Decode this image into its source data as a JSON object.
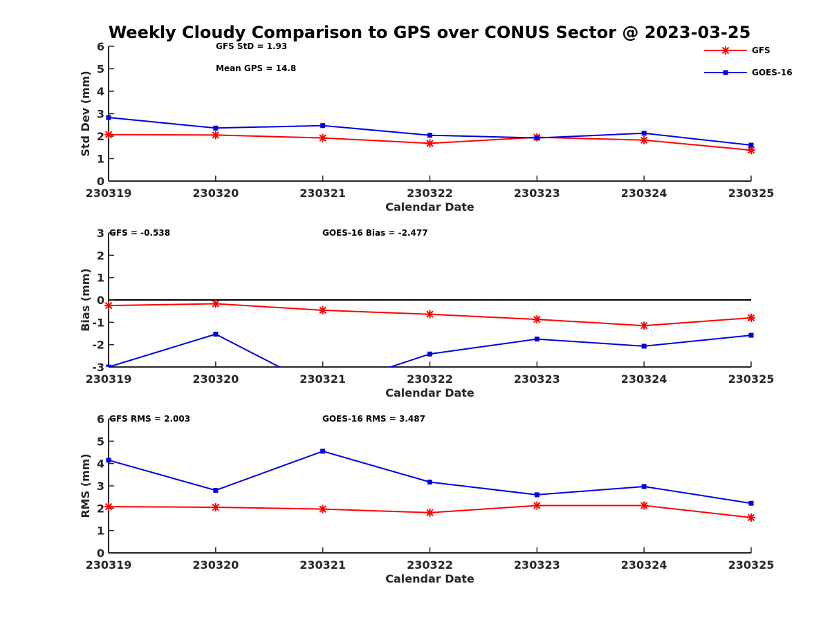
{
  "colors": {
    "GFS": "#ff0000",
    "GOES-16": "#0000e0",
    "axis": "#262626",
    "zero_line": "#000000"
  },
  "chart_data": {
    "title": "Weekly Cloudy Comparison to GPS over CONUS Sector @ 2023-03-25",
    "legend": {
      "placement": "top-right",
      "entries": [
        "GFS",
        "GOES-16"
      ]
    },
    "panels": [
      {
        "type": "line",
        "categories": [
          "230319",
          "230320",
          "230321",
          "230322",
          "230323",
          "230324",
          "230325"
        ],
        "xlabel": "Calendar Date",
        "ylabel": "Std Dev (mm)",
        "ylim": [
          0,
          6
        ],
        "yticks": [
          "0",
          "1",
          "2",
          "3",
          "4",
          "5",
          "6"
        ],
        "annotations": [
          "GFS StD = 1.93",
          "Mean GPS = 14.8"
        ],
        "series": [
          {
            "name": "GFS",
            "values": [
              2.07,
              2.05,
              1.92,
              1.68,
              1.95,
              1.82,
              1.38
            ]
          },
          {
            "name": "GOES-16",
            "values": [
              2.83,
              2.36,
              2.47,
              2.04,
              1.92,
              2.13,
              1.6
            ]
          }
        ]
      },
      {
        "type": "line",
        "categories": [
          "230319",
          "230320",
          "230321",
          "230322",
          "230323",
          "230324",
          "230325"
        ],
        "xlabel": "Calendar Date",
        "ylabel": "Bias (mm)",
        "ylim": [
          -3,
          3
        ],
        "yticks": [
          "-3",
          "-2",
          "-1",
          "0",
          "1",
          "2",
          "3"
        ],
        "zero_line": true,
        "annotations": [
          "GFS = -0.538",
          "GOES-16 Bias  = -2.477"
        ],
        "series": [
          {
            "name": "GFS",
            "values": [
              -0.25,
              -0.17,
              -0.46,
              -0.64,
              -0.87,
              -1.15,
              -0.8
            ]
          },
          {
            "name": "GOES-16",
            "values": [
              -3.0,
              -1.53,
              -4.0,
              -2.42,
              -1.75,
              -2.07,
              -1.58
            ]
          }
        ]
      },
      {
        "type": "line",
        "categories": [
          "230319",
          "230320",
          "230321",
          "230322",
          "230323",
          "230324",
          "230325"
        ],
        "xlabel": "Calendar Date",
        "ylabel": "RMS (mm)",
        "ylim": [
          0,
          6
        ],
        "yticks": [
          "0",
          "1",
          "2",
          "3",
          "4",
          "5",
          "6"
        ],
        "annotations": [
          "GFS RMS = 2.003",
          "GOES-16 RMS = 3.487"
        ],
        "series": [
          {
            "name": "GFS",
            "values": [
              2.07,
              2.04,
              1.96,
              1.8,
              2.12,
              2.12,
              1.58
            ]
          },
          {
            "name": "GOES-16",
            "values": [
              4.15,
              2.8,
              4.55,
              3.17,
              2.6,
              2.97,
              2.22
            ]
          }
        ]
      }
    ]
  }
}
